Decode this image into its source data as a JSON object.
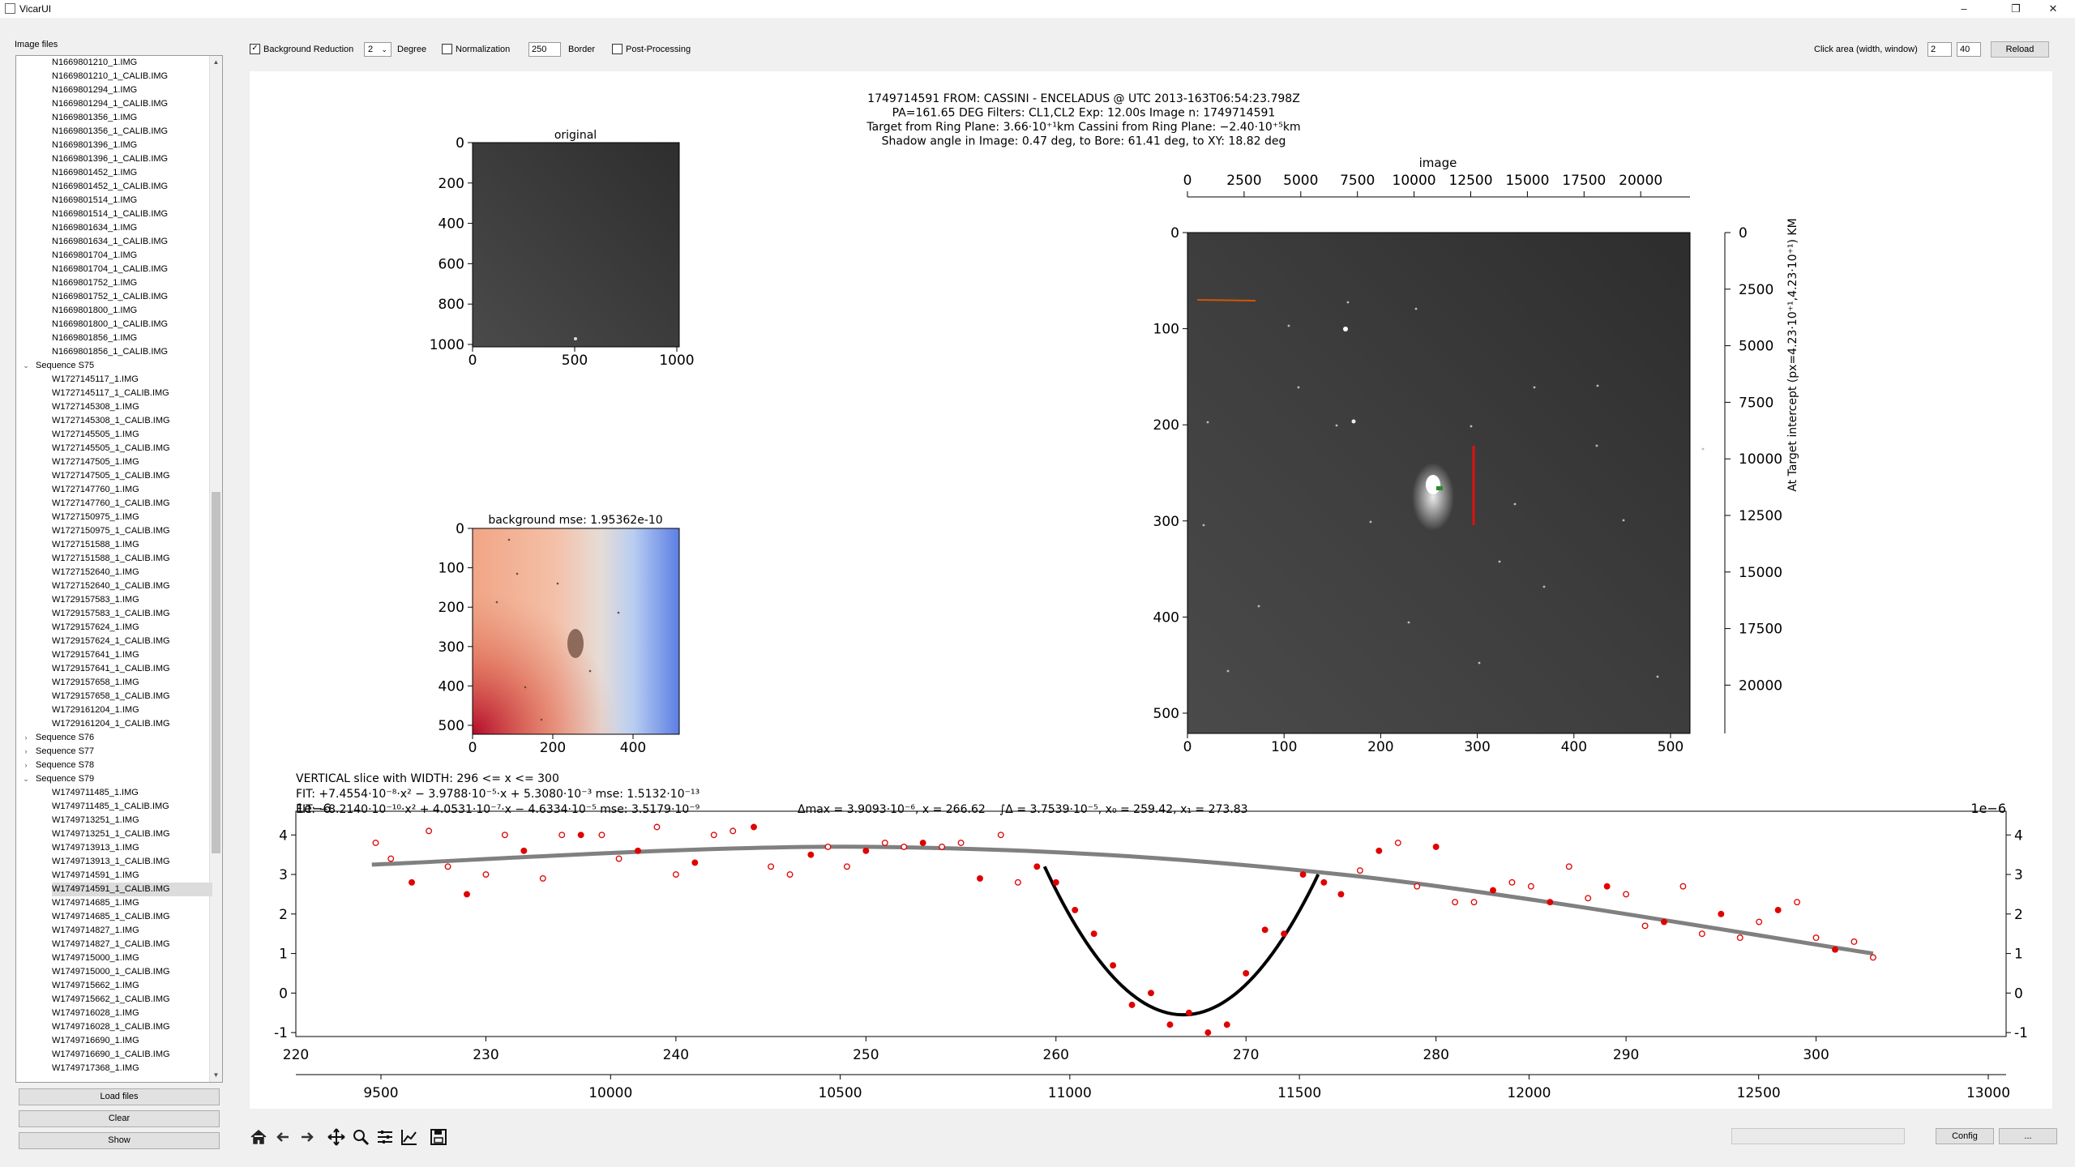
{
  "window": {
    "title": "VicarUI",
    "minimize": "–",
    "restore": "❐",
    "close": "✕"
  },
  "sidebar": {
    "label": "Image files",
    "tree": [
      {
        "t": "N1669801210_1.IMG",
        "lv": 2
      },
      {
        "t": "N1669801210_1_CALIB.IMG",
        "lv": 2
      },
      {
        "t": "N1669801294_1.IMG",
        "lv": 2
      },
      {
        "t": "N1669801294_1_CALIB.IMG",
        "lv": 2
      },
      {
        "t": "N1669801356_1.IMG",
        "lv": 2
      },
      {
        "t": "N1669801356_1_CALIB.IMG",
        "lv": 2
      },
      {
        "t": "N1669801396_1.IMG",
        "lv": 2
      },
      {
        "t": "N1669801396_1_CALIB.IMG",
        "lv": 2
      },
      {
        "t": "N1669801452_1.IMG",
        "lv": 2
      },
      {
        "t": "N1669801452_1_CALIB.IMG",
        "lv": 2
      },
      {
        "t": "N1669801514_1.IMG",
        "lv": 2
      },
      {
        "t": "N1669801514_1_CALIB.IMG",
        "lv": 2
      },
      {
        "t": "N1669801634_1.IMG",
        "lv": 2
      },
      {
        "t": "N1669801634_1_CALIB.IMG",
        "lv": 2
      },
      {
        "t": "N1669801704_1.IMG",
        "lv": 2
      },
      {
        "t": "N1669801704_1_CALIB.IMG",
        "lv": 2
      },
      {
        "t": "N1669801752_1.IMG",
        "lv": 2
      },
      {
        "t": "N1669801752_1_CALIB.IMG",
        "lv": 2
      },
      {
        "t": "N1669801800_1.IMG",
        "lv": 2
      },
      {
        "t": "N1669801800_1_CALIB.IMG",
        "lv": 2
      },
      {
        "t": "N1669801856_1.IMG",
        "lv": 2
      },
      {
        "t": "N1669801856_1_CALIB.IMG",
        "lv": 2
      },
      {
        "t": "Sequence S75",
        "lv": 1,
        "caret": "⌄"
      },
      {
        "t": "W1727145117_1.IMG",
        "lv": 2
      },
      {
        "t": "W1727145117_1_CALIB.IMG",
        "lv": 2
      },
      {
        "t": "W1727145308_1.IMG",
        "lv": 2
      },
      {
        "t": "W1727145308_1_CALIB.IMG",
        "lv": 2
      },
      {
        "t": "W1727145505_1.IMG",
        "lv": 2
      },
      {
        "t": "W1727145505_1_CALIB.IMG",
        "lv": 2
      },
      {
        "t": "W1727147505_1.IMG",
        "lv": 2
      },
      {
        "t": "W1727147505_1_CALIB.IMG",
        "lv": 2
      },
      {
        "t": "W1727147760_1.IMG",
        "lv": 2
      },
      {
        "t": "W1727147760_1_CALIB.IMG",
        "lv": 2
      },
      {
        "t": "W1727150975_1.IMG",
        "lv": 2
      },
      {
        "t": "W1727150975_1_CALIB.IMG",
        "lv": 2
      },
      {
        "t": "W1727151588_1.IMG",
        "lv": 2
      },
      {
        "t": "W1727151588_1_CALIB.IMG",
        "lv": 2
      },
      {
        "t": "W1727152640_1.IMG",
        "lv": 2
      },
      {
        "t": "W1727152640_1_CALIB.IMG",
        "lv": 2
      },
      {
        "t": "W1729157583_1.IMG",
        "lv": 2
      },
      {
        "t": "W1729157583_1_CALIB.IMG",
        "lv": 2
      },
      {
        "t": "W1729157624_1.IMG",
        "lv": 2
      },
      {
        "t": "W1729157624_1_CALIB.IMG",
        "lv": 2
      },
      {
        "t": "W1729157641_1.IMG",
        "lv": 2
      },
      {
        "t": "W1729157641_1_CALIB.IMG",
        "lv": 2
      },
      {
        "t": "W1729157658_1.IMG",
        "lv": 2
      },
      {
        "t": "W1729157658_1_CALIB.IMG",
        "lv": 2
      },
      {
        "t": "W1729161204_1.IMG",
        "lv": 2
      },
      {
        "t": "W1729161204_1_CALIB.IMG",
        "lv": 2
      },
      {
        "t": "Sequence S76",
        "lv": 1,
        "caret": "›"
      },
      {
        "t": "Sequence S77",
        "lv": 1,
        "caret": "›"
      },
      {
        "t": "Sequence S78",
        "lv": 1,
        "caret": "›"
      },
      {
        "t": "Sequence S79",
        "lv": 1,
        "caret": "⌄"
      },
      {
        "t": "W1749711485_1.IMG",
        "lv": 2
      },
      {
        "t": "W1749711485_1_CALIB.IMG",
        "lv": 2
      },
      {
        "t": "W1749713251_1.IMG",
        "lv": 2
      },
      {
        "t": "W1749713251_1_CALIB.IMG",
        "lv": 2
      },
      {
        "t": "W1749713913_1.IMG",
        "lv": 2
      },
      {
        "t": "W1749713913_1_CALIB.IMG",
        "lv": 2
      },
      {
        "t": "W1749714591_1.IMG",
        "lv": 2
      },
      {
        "t": "W1749714591_1_CALIB.IMG",
        "lv": 2,
        "selected": true
      },
      {
        "t": "W1749714685_1.IMG",
        "lv": 2
      },
      {
        "t": "W1749714685_1_CALIB.IMG",
        "lv": 2
      },
      {
        "t": "W1749714827_1.IMG",
        "lv": 2
      },
      {
        "t": "W1749714827_1_CALIB.IMG",
        "lv": 2
      },
      {
        "t": "W1749715000_1.IMG",
        "lv": 2
      },
      {
        "t": "W1749715000_1_CALIB.IMG",
        "lv": 2
      },
      {
        "t": "W1749715662_1.IMG",
        "lv": 2
      },
      {
        "t": "W1749715662_1_CALIB.IMG",
        "lv": 2
      },
      {
        "t": "W1749716028_1.IMG",
        "lv": 2
      },
      {
        "t": "W1749716028_1_CALIB.IMG",
        "lv": 2
      },
      {
        "t": "W1749716690_1.IMG",
        "lv": 2
      },
      {
        "t": "W1749716690_1_CALIB.IMG",
        "lv": 2
      },
      {
        "t": "W1749717368_1.IMG",
        "lv": 2
      }
    ],
    "buttons": {
      "load": "Load files",
      "clear": "Clear",
      "show": "Show"
    }
  },
  "toolbar": {
    "bg_reduction": {
      "label": "Background Reduction",
      "checked": true
    },
    "degree_value": "2",
    "degree_label": "Degree",
    "normalization": {
      "label": "Normalization",
      "checked": false
    },
    "border_value": "250",
    "border_label": "Border",
    "post_processing": {
      "label": "Post-Processing",
      "checked": false
    },
    "click_area_label": "Click area (width, window)",
    "click_width": "2",
    "click_window": "40",
    "reload": "Reload"
  },
  "figure": {
    "header_lines": [
      "1749714591 FROM: CASSINI - ENCELADUS @ UTC 2013-163T06:54:23.798Z",
      "PA=161.65 DEG  Filters: CL1,CL2 Exp: 12.00s  Image n: 1749714591",
      "Target from Ring Plane: 3.66·10⁺¹km Cassini from Ring Plane: −2.40·10⁺⁵km",
      "Shadow angle in Image: 0.47 deg, to Bore: 61.41 deg, to XY: 18.82 deg"
    ],
    "original": {
      "title": "original",
      "xticks": [
        "0",
        "500",
        "1000"
      ],
      "yticks": [
        "0",
        "200",
        "400",
        "600",
        "800",
        "1000"
      ]
    },
    "background": {
      "title": "background mse: 1.95362e-10",
      "xticks": [
        "0",
        "200",
        "400"
      ],
      "yticks": [
        "0",
        "100",
        "200",
        "300",
        "400",
        "500"
      ]
    },
    "main": {
      "top_label": "image",
      "top_ticks": [
        "0",
        "2500",
        "5000",
        "7500",
        "10000",
        "12500",
        "15000",
        "17500",
        "20000"
      ],
      "bottom_ticks": [
        "0",
        "100",
        "200",
        "300",
        "400",
        "500"
      ],
      "left_ticks": [
        "0",
        "100",
        "200",
        "300",
        "400",
        "500"
      ],
      "right_ticks": [
        "0",
        "2500",
        "5000",
        "7500",
        "10000",
        "12500",
        "15000",
        "17500",
        "20000"
      ],
      "right_label": "At Target intercept (px=4.23·10⁺¹,4.23·10⁺¹) KM"
    },
    "slice": {
      "line1": "VERTICAL slice with WIDTH: 296 <= x <= 300",
      "line2": "FIT: +7.4554·10⁻⁸·x² − 3.9788·10⁻⁵·x + 5.3080·10⁻³  mse: 1.5132·10⁻¹³",
      "line3": "FIT: −8.2140·10⁻¹⁰·x² + 4.0531·10⁻⁷·x − 4.6334·10⁻⁵  mse: 3.5179·10⁻⁹",
      "dmax": "Δmax = 3.9093·10⁻⁶, x = 266.62",
      "integral": "∫Δ = 3.7539·10⁻⁵, x₀ = 259.42, x₁ = 273.83",
      "scale_left": "1e−6",
      "scale_right": "1e−6"
    }
  },
  "chart_data": {
    "type": "scatter",
    "title": "VERTICAL slice with WIDTH: 296 <= x <= 300",
    "x_ticks_primary": [
      230,
      240,
      250,
      260,
      270,
      280,
      290,
      300
    ],
    "x_ticks_secondary": [
      9500,
      10000,
      10500,
      11000,
      11500,
      12000,
      12500,
      13000
    ],
    "y_ticks": [
      -1,
      0,
      1,
      2,
      3,
      4
    ],
    "xlim": [
      220,
      310
    ],
    "ylim": [
      -1.1,
      4.6
    ],
    "y_scale": "1e-6",
    "series": [
      {
        "name": "",
        "kind": "points",
        "x": [
          224.2,
          225.0,
          226.1,
          227.0,
          228.0,
          229.0,
          230.0,
          231.0,
          232.0,
          233.0,
          234.0,
          235.0,
          236.1,
          237.0,
          238.0,
          239.0,
          240.0,
          241.0,
          242.0,
          243.0,
          244.1,
          245.0,
          246.0,
          247.1,
          248.0,
          249.0,
          250.0,
          251.0,
          252.0,
          253.0,
          254.0,
          255.0,
          256.0,
          257.1,
          258.0,
          259.0,
          260.0,
          261.0,
          262.0,
          263.0,
          264.0,
          265.0,
          266.0,
          267.0,
          268.0,
          269.0,
          270.0,
          271.0,
          272.0,
          273.0,
          274.1,
          275.0,
          276.0,
          277.0,
          278.0,
          279.0,
          280.0,
          281.0,
          282.0,
          283.0,
          284.0,
          285.0,
          286.0,
          287.0,
          288.0,
          289.0,
          290.0,
          291.0,
          292.0,
          293.0,
          294.0,
          295.0,
          296.0,
          297.0,
          298.0,
          299.0,
          300.0,
          301.0,
          302.0,
          303.0
        ],
        "y": [
          3.8,
          3.4,
          2.8,
          4.1,
          3.2,
          2.5,
          3.0,
          4.0,
          3.6,
          2.9,
          4.0,
          4.0,
          4.0,
          3.4,
          3.6,
          4.2,
          3.0,
          3.3,
          4.0,
          4.1,
          4.2,
          3.2,
          3.0,
          3.5,
          3.7,
          3.2,
          3.6,
          3.8,
          3.7,
          3.8,
          3.7,
          3.8,
          2.9,
          4.0,
          2.8,
          3.2,
          2.8,
          2.1,
          1.5,
          0.7,
          -0.3,
          0.0,
          -0.8,
          -0.5,
          -1.0,
          -0.8,
          0.5,
          1.6,
          1.5,
          3.0,
          2.8,
          2.5,
          3.1,
          3.6,
          3.8,
          2.7,
          3.7,
          2.3,
          2.3,
          2.6,
          2.8,
          2.7,
          2.3,
          3.2,
          2.4,
          2.7,
          2.5,
          1.7,
          1.8,
          2.7,
          1.5,
          2.0,
          1.4,
          1.8,
          2.1,
          2.3,
          1.4,
          1.1,
          1.3,
          0.9
        ]
      },
      {
        "name": "",
        "kind": "fit-curve",
        "x": [
          224,
          250,
          275,
          303
        ],
        "y": [
          3.25,
          3.7,
          3.0,
          1.0
        ]
      },
      {
        "name": "",
        "kind": "fit-parabola",
        "x": [
          259.4,
          266.6,
          273.8
        ],
        "y": [
          3.2,
          -0.55,
          3.0
        ]
      }
    ]
  },
  "navbar": {
    "icons": [
      "home-icon",
      "back-icon",
      "forward-icon",
      "pan-icon",
      "zoom-icon",
      "configure-subplots-icon",
      "edit-axis-icon",
      "save-figure-icon"
    ],
    "config": "Config",
    "more": "..."
  }
}
